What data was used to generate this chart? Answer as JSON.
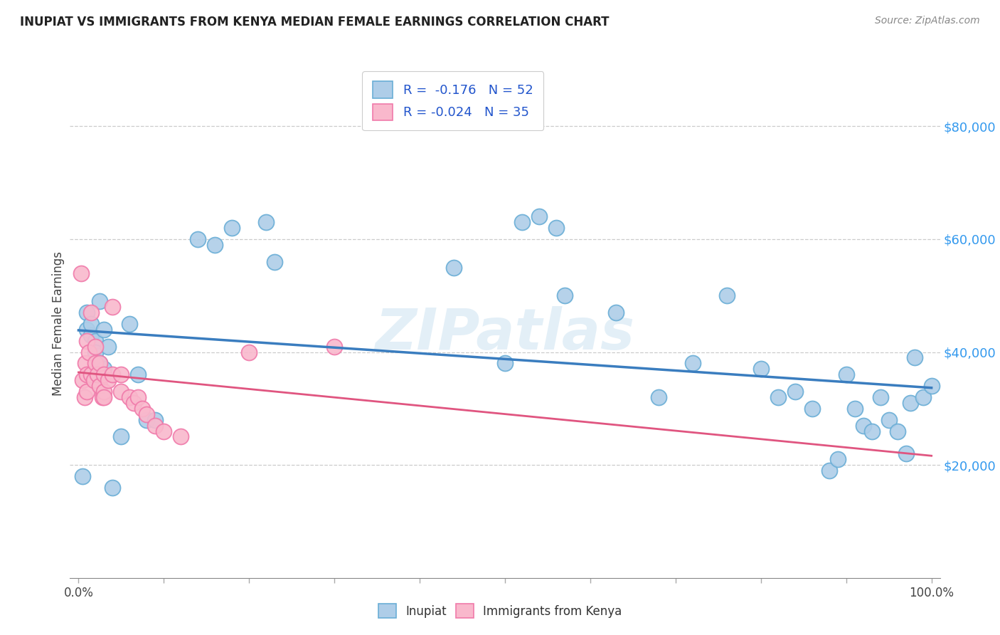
{
  "title": "INUPIAT VS IMMIGRANTS FROM KENYA MEDIAN FEMALE EARNINGS CORRELATION CHART",
  "source": "Source: ZipAtlas.com",
  "ylabel": "Median Female Earnings",
  "watermark": "ZIPatlas",
  "ytick_labels": [
    "$20,000",
    "$40,000",
    "$60,000",
    "$80,000"
  ],
  "ytick_values": [
    20000,
    40000,
    60000,
    80000
  ],
  "ymin": 0,
  "ymax": 90000,
  "xmin": 0.0,
  "xmax": 1.0,
  "blue_scatter_face": "#aecde8",
  "blue_scatter_edge": "#6aaed6",
  "pink_scatter_face": "#f9b8cc",
  "pink_scatter_edge": "#f07aaa",
  "line_blue": "#3a7dbf",
  "line_pink": "#e05580",
  "inupiat_x": [
    0.005,
    0.01,
    0.01,
    0.015,
    0.015,
    0.02,
    0.02,
    0.02,
    0.025,
    0.025,
    0.03,
    0.03,
    0.035,
    0.04,
    0.05,
    0.06,
    0.07,
    0.08,
    0.09,
    0.14,
    0.16,
    0.18,
    0.22,
    0.23,
    0.44,
    0.5,
    0.52,
    0.54,
    0.56,
    0.57,
    0.63,
    0.68,
    0.72,
    0.76,
    0.8,
    0.82,
    0.84,
    0.86,
    0.88,
    0.89,
    0.9,
    0.91,
    0.92,
    0.93,
    0.94,
    0.95,
    0.96,
    0.97,
    0.975,
    0.98,
    0.99,
    1.0
  ],
  "inupiat_y": [
    18000,
    44000,
    47000,
    43000,
    45000,
    42000,
    40000,
    36000,
    38000,
    49000,
    44000,
    37000,
    41000,
    16000,
    25000,
    45000,
    36000,
    28000,
    28000,
    60000,
    59000,
    62000,
    63000,
    56000,
    55000,
    38000,
    63000,
    64000,
    62000,
    50000,
    47000,
    32000,
    38000,
    50000,
    37000,
    32000,
    33000,
    30000,
    19000,
    21000,
    36000,
    30000,
    27000,
    26000,
    32000,
    28000,
    26000,
    22000,
    31000,
    39000,
    32000,
    34000
  ],
  "kenya_x": [
    0.003,
    0.005,
    0.007,
    0.008,
    0.01,
    0.01,
    0.01,
    0.012,
    0.015,
    0.015,
    0.018,
    0.02,
    0.02,
    0.022,
    0.025,
    0.025,
    0.028,
    0.03,
    0.03,
    0.03,
    0.035,
    0.04,
    0.04,
    0.05,
    0.05,
    0.06,
    0.065,
    0.07,
    0.075,
    0.08,
    0.09,
    0.1,
    0.12,
    0.2,
    0.3
  ],
  "kenya_y": [
    54000,
    35000,
    32000,
    38000,
    36000,
    33000,
    42000,
    40000,
    36000,
    47000,
    35000,
    41000,
    38000,
    36000,
    34000,
    38000,
    32000,
    36000,
    33000,
    32000,
    35000,
    48000,
    36000,
    36000,
    33000,
    32000,
    31000,
    32000,
    30000,
    29000,
    27000,
    26000,
    25000,
    40000,
    41000
  ]
}
